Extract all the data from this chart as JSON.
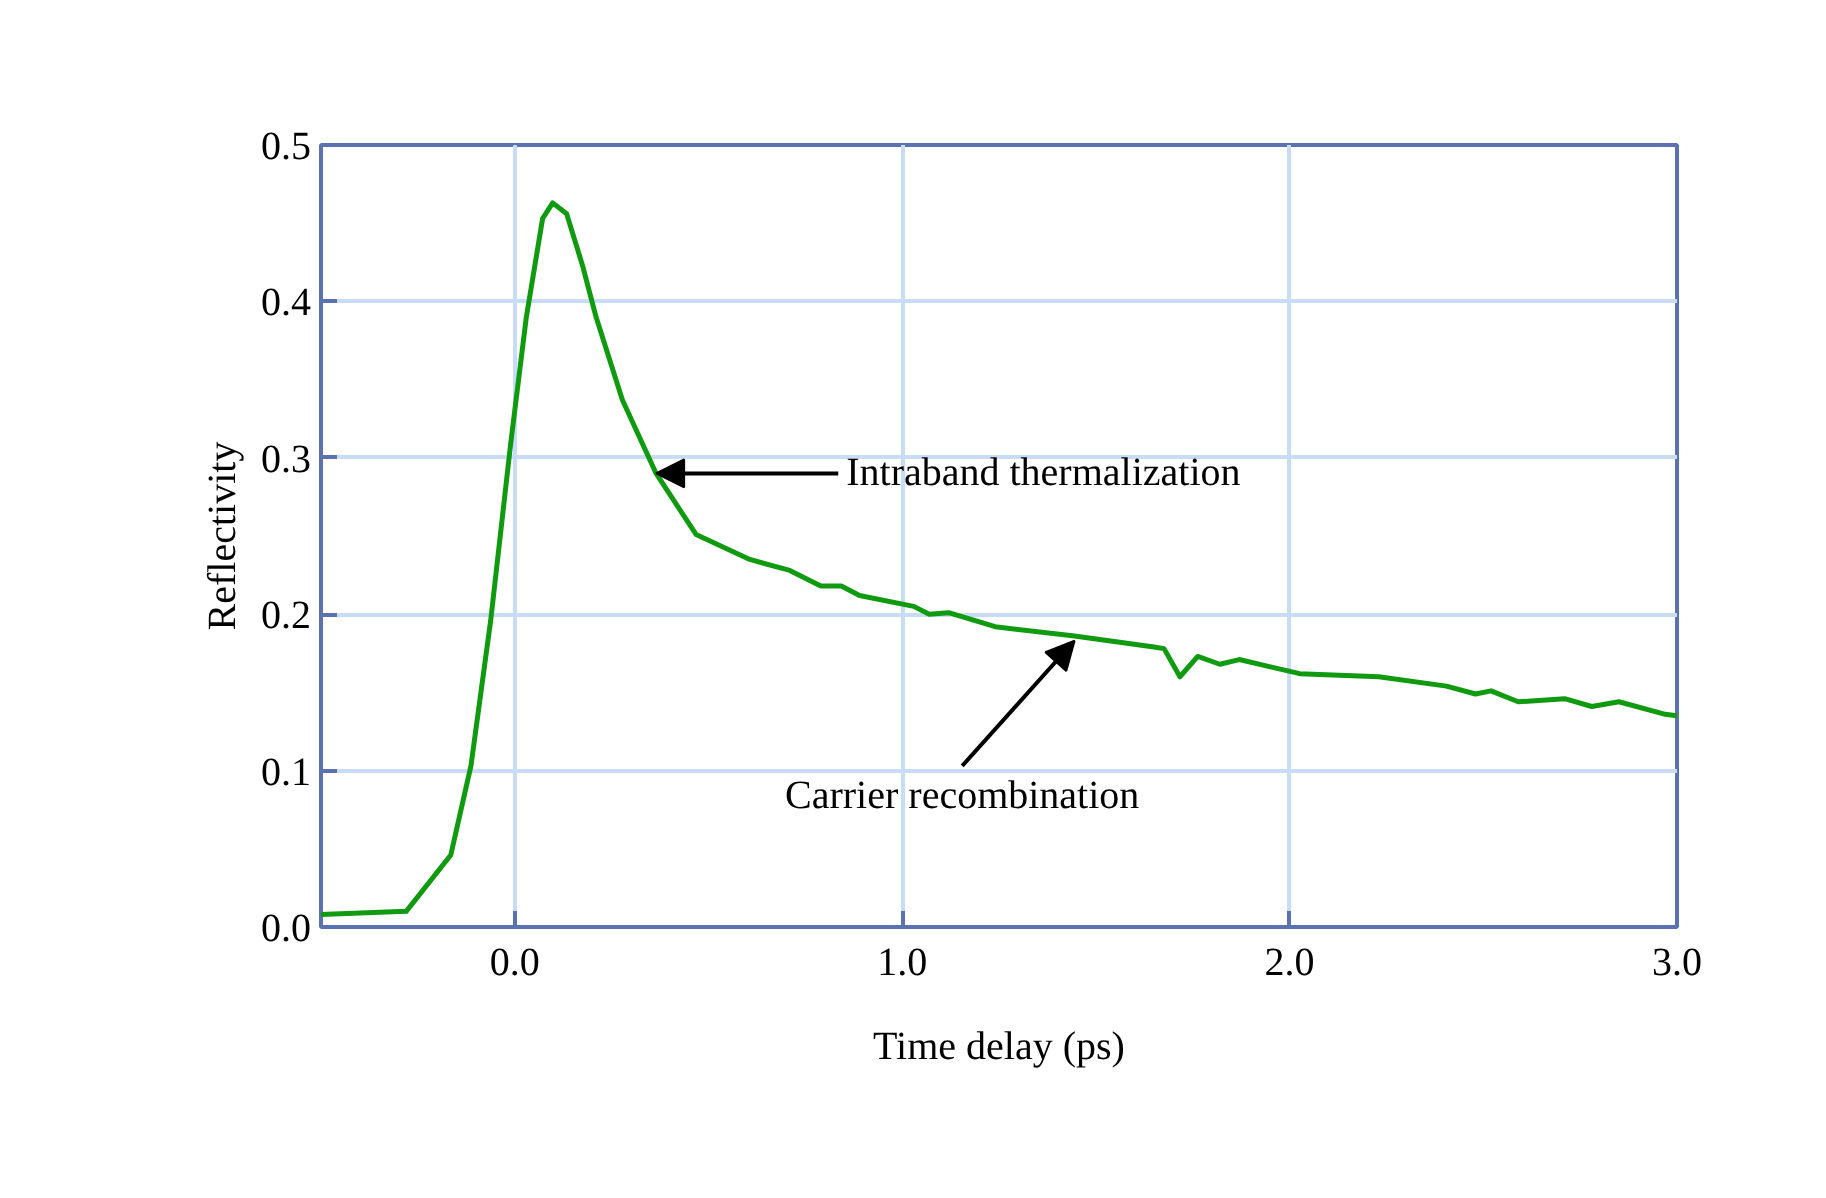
{
  "chart_data": {
    "type": "line",
    "xlabel": "Time delay (ps)",
    "ylabel": "Reflectivity",
    "x": [
      -0.5,
      -0.28,
      -0.165,
      -0.113,
      -0.062,
      -0.01,
      0.03,
      0.072,
      0.098,
      0.134,
      0.175,
      0.21,
      0.278,
      0.365,
      0.468,
      0.607,
      0.71,
      0.79,
      0.843,
      0.89,
      1.03,
      1.07,
      1.12,
      1.24,
      1.445,
      1.65,
      1.676,
      1.717,
      1.763,
      1.82,
      1.87,
      2.026,
      2.23,
      2.405,
      2.48,
      2.52,
      2.59,
      2.71,
      2.78,
      2.85,
      2.97,
      3.0
    ],
    "series": [
      {
        "color": "#109a10",
        "values": [
          0.008,
          0.01,
          0.046,
          0.103,
          0.196,
          0.31,
          0.39,
          0.453,
          0.463,
          0.456,
          0.423,
          0.39,
          0.337,
          0.29,
          0.251,
          0.235,
          0.228,
          0.218,
          0.218,
          0.212,
          0.205,
          0.2,
          0.201,
          0.192,
          0.186,
          0.179,
          0.178,
          0.16,
          0.173,
          0.168,
          0.171,
          0.162,
          0.16,
          0.154,
          0.149,
          0.151,
          0.144,
          0.146,
          0.141,
          0.144,
          0.136,
          0.135
        ]
      }
    ],
    "xlim": [
      -0.5,
      3.0
    ],
    "xticks": [
      {
        "value": 0,
        "label": "0.0"
      },
      {
        "value": 1,
        "label": "1.0"
      },
      {
        "value": 2,
        "label": "2.0"
      },
      {
        "value": 3,
        "label": "3.0"
      }
    ],
    "ylim": [
      0,
      0.5
    ],
    "yticks": [
      {
        "value": 0,
        "label": "0.0"
      },
      0.1,
      0.2,
      0.3,
      0.4,
      0.5
    ],
    "grid": true,
    "marker": "none",
    "line_style": "solid",
    "annotations": [
      {
        "text": "Intraband thermalization",
        "x": 0.365,
        "y": 0.29
      },
      {
        "text": "Carrier recombination",
        "x": 1.445,
        "y": 0.183
      }
    ]
  }
}
